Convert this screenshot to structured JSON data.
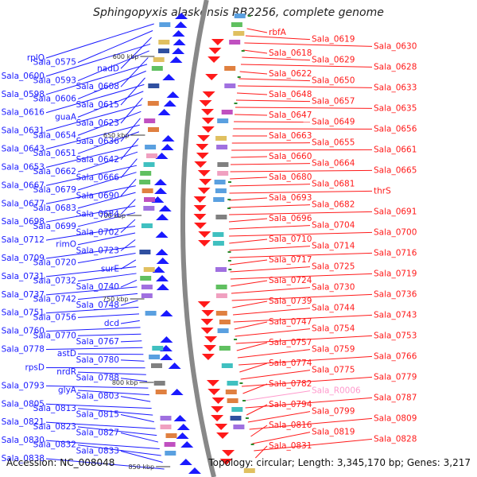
{
  "title": "Sphingopyxis alaskensis RB2256, complete genome",
  "footer": {
    "accession": "Accession: NC_008048",
    "topology": "Topology: circular; Length: 3,345,170 bp; Genes: 3,217"
  },
  "colors": {
    "left_strand": "#1a1aff",
    "right_strand": "#ff1a1a",
    "rna": "#ff99cc",
    "axis": "#888888"
  },
  "kbp_marks": [
    {
      "label": "600 kbp",
      "kbp": 600
    },
    {
      "label": "650 kbp",
      "kbp": 650
    },
    {
      "label": "700 kbp",
      "kbp": 700
    },
    {
      "label": "750 kbp",
      "kbp": 750
    },
    {
      "label": "800 kbp",
      "kbp": 800
    },
    {
      "label": "850 kbp",
      "kbp": 850
    }
  ],
  "left_labels": [
    {
      "t": "rplQ"
    },
    {
      "t": "Sala_0575"
    },
    {
      "t": "nadD"
    },
    {
      "t": "Sala_0600"
    },
    {
      "t": "Sala_0593"
    },
    {
      "t": "Sala_0608"
    },
    {
      "t": "Sala_0598"
    },
    {
      "t": "Sala_0606"
    },
    {
      "t": "Sala_0615"
    },
    {
      "t": "Sala_0616"
    },
    {
      "t": "guaA"
    },
    {
      "t": "Sala_0623"
    },
    {
      "t": "Sala_0631"
    },
    {
      "t": "Sala_0654"
    },
    {
      "t": "Sala_0636"
    },
    {
      "t": "Sala_0643"
    },
    {
      "t": "Sala_0651"
    },
    {
      "t": "Sala_0642"
    },
    {
      "t": "Sala_0653"
    },
    {
      "t": "Sala_0662"
    },
    {
      "t": "Sala_0666"
    },
    {
      "t": "Sala_0667"
    },
    {
      "t": "Sala_0679"
    },
    {
      "t": "Sala_0690"
    },
    {
      "t": "Sala_0677"
    },
    {
      "t": "Sala_0683"
    },
    {
      "t": "Sala_0684"
    },
    {
      "t": "Sala_0698"
    },
    {
      "t": "Sala_0699"
    },
    {
      "t": "Sala_0702"
    },
    {
      "t": "Sala_0712"
    },
    {
      "t": "rimO"
    },
    {
      "t": "Sala_0723"
    },
    {
      "t": "Sala_0709"
    },
    {
      "t": "Sala_0720"
    },
    {
      "t": "surE"
    },
    {
      "t": "Sala_0731"
    },
    {
      "t": "Sala_0732"
    },
    {
      "t": "Sala_0740"
    },
    {
      "t": "Sala_0737"
    },
    {
      "t": "Sala_0742"
    },
    {
      "t": "Sala_0748"
    },
    {
      "t": "Sala_0751"
    },
    {
      "t": "Sala_0756"
    },
    {
      "t": "dcd"
    },
    {
      "t": "Sala_0760"
    },
    {
      "t": "Sala_0770"
    },
    {
      "t": "Sala_0767"
    },
    {
      "t": "Sala_0778"
    },
    {
      "t": "astD"
    },
    {
      "t": "Sala_0780"
    },
    {
      "t": "rpsD"
    },
    {
      "t": "nrdR"
    },
    {
      "t": "Sala_0788"
    },
    {
      "t": "Sala_0793"
    },
    {
      "t": "glyA"
    },
    {
      "t": "Sala_0803"
    },
    {
      "t": "Sala_0805"
    },
    {
      "t": "Sala_0813"
    },
    {
      "t": "Sala_0815"
    },
    {
      "t": "Sala_0821"
    },
    {
      "t": "Sala_0823"
    },
    {
      "t": "Sala_0827"
    },
    {
      "t": "Sala_0830"
    },
    {
      "t": "Sala_0832"
    },
    {
      "t": "Sala_0833"
    },
    {
      "t": "Sala_0838"
    }
  ],
  "right_labels": [
    {
      "t": "rbfA"
    },
    {
      "t": "Sala_0619"
    },
    {
      "t": "Sala_0630"
    },
    {
      "t": "Sala_0618"
    },
    {
      "t": "Sala_0629"
    },
    {
      "t": "Sala_0628"
    },
    {
      "t": "Sala_0622"
    },
    {
      "t": "Sala_0650"
    },
    {
      "t": "Sala_0633"
    },
    {
      "t": "Sala_0648"
    },
    {
      "t": "Sala_0657"
    },
    {
      "t": "Sala_0635"
    },
    {
      "t": "Sala_0647"
    },
    {
      "t": "Sala_0649"
    },
    {
      "t": "Sala_0656"
    },
    {
      "t": "Sala_0663"
    },
    {
      "t": "Sala_0655"
    },
    {
      "t": "Sala_0661"
    },
    {
      "t": "Sala_0660"
    },
    {
      "t": "Sala_0664"
    },
    {
      "t": "Sala_0665"
    },
    {
      "t": "Sala_0680"
    },
    {
      "t": "Sala_0681"
    },
    {
      "t": "thrS"
    },
    {
      "t": "Sala_0693"
    },
    {
      "t": "Sala_0682"
    },
    {
      "t": "Sala_0691"
    },
    {
      "t": "Sala_0696"
    },
    {
      "t": "Sala_0704"
    },
    {
      "t": "Sala_0700"
    },
    {
      "t": "Sala_0710"
    },
    {
      "t": "Sala_0714"
    },
    {
      "t": "Sala_0716"
    },
    {
      "t": "Sala_0717"
    },
    {
      "t": "Sala_0725"
    },
    {
      "t": "Sala_0719"
    },
    {
      "t": "Sala_0724"
    },
    {
      "t": "Sala_0730"
    },
    {
      "t": "Sala_0736"
    },
    {
      "t": "Sala_0739"
    },
    {
      "t": "Sala_0744"
    },
    {
      "t": "Sala_0743"
    },
    {
      "t": "Sala_0747"
    },
    {
      "t": "Sala_0754"
    },
    {
      "t": "Sala_0753"
    },
    {
      "t": "Sala_0757"
    },
    {
      "t": "Sala_0759"
    },
    {
      "t": "Sala_0766"
    },
    {
      "t": "Sala_0774"
    },
    {
      "t": "Sala_0775"
    },
    {
      "t": "Sala_0779"
    },
    {
      "t": "Sala_0782"
    },
    {
      "t": "Sala_R0006",
      "rna": true
    },
    {
      "t": "Sala_0787"
    },
    {
      "t": "Sala_0794"
    },
    {
      "t": "Sala_0799"
    },
    {
      "t": "Sala_0809"
    },
    {
      "t": "Sala_0816"
    },
    {
      "t": "Sala_0819"
    },
    {
      "t": "Sala_0828"
    },
    {
      "t": "Sala_0831"
    }
  ]
}
